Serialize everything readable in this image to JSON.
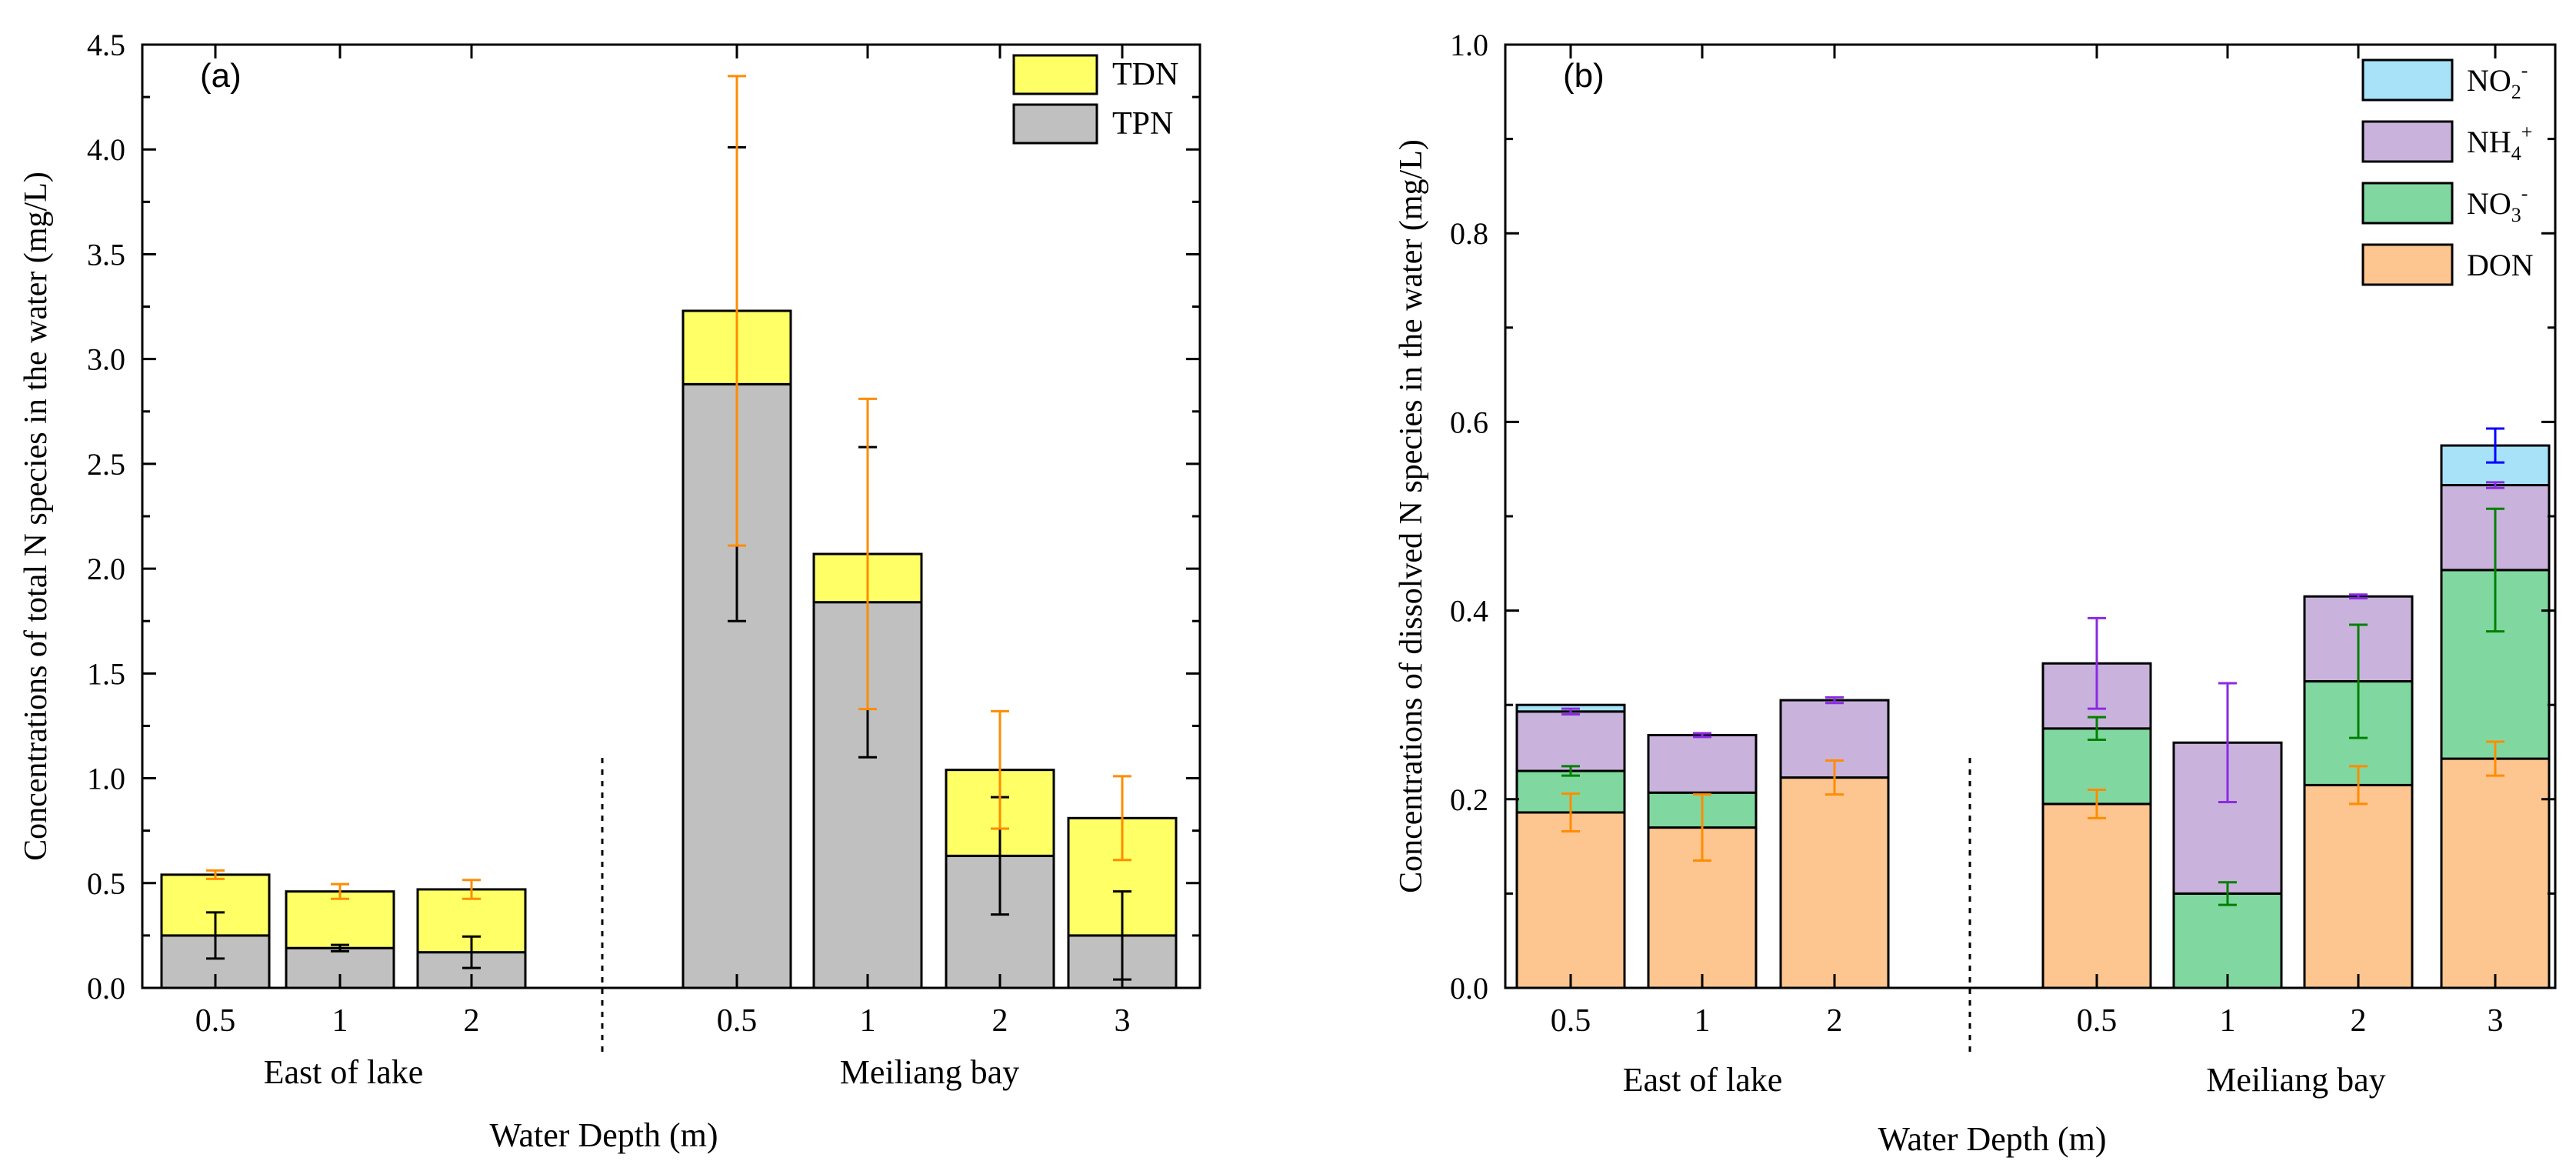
{
  "chart_data": [
    {
      "type": "bar",
      "stacked": true,
      "panel_label": "(a)",
      "xlabel": "Water Depth (m)",
      "ylabel": "Concentrations of total N species in the water (mg/L)",
      "ylim": [
        0,
        4.5
      ],
      "yticks": [
        "0.0",
        "0.5",
        "1.0",
        "1.5",
        "2.0",
        "2.5",
        "3.0",
        "3.5",
        "4.0",
        "4.5"
      ],
      "groups": [
        {
          "name": "East of lake",
          "categories": [
            "0.5",
            "1",
            "2"
          ]
        },
        {
          "name": "Meiliang bay",
          "categories": [
            "0.5",
            "1",
            "2",
            "3"
          ]
        }
      ],
      "legend": [
        "TDN",
        "TPN"
      ],
      "series": [
        {
          "name": "TPN",
          "color": "#c0c0c0",
          "values": [
            0.25,
            0.19,
            0.17,
            2.88,
            1.84,
            0.63,
            0.25
          ],
          "errors": [
            0.11,
            0.015,
            0.075,
            1.13,
            0.74,
            0.28,
            0.21
          ],
          "error_color": "#000000"
        },
        {
          "name": "TDN",
          "color": "#ffff66",
          "values": [
            0.29,
            0.27,
            0.3,
            0.35,
            0.23,
            0.41,
            0.56
          ],
          "errors": [
            0.02,
            0.035,
            0.045,
            1.12,
            0.74,
            0.28,
            0.2
          ],
          "error_color": "#ff8c00"
        }
      ]
    },
    {
      "type": "bar",
      "stacked": true,
      "panel_label": "(b)",
      "xlabel": "Water Depth (m)",
      "ylabel": "Concentrations of dissolved N species in the water (mg/L)",
      "ylim": [
        0,
        1.0
      ],
      "yticks": [
        "0.0",
        "0.2",
        "0.4",
        "0.6",
        "0.8",
        "1.0"
      ],
      "groups": [
        {
          "name": "East of lake",
          "categories": [
            "0.5",
            "1",
            "2"
          ]
        },
        {
          "name": "Meiliang bay",
          "categories": [
            "0.5",
            "1",
            "2",
            "3"
          ]
        }
      ],
      "legend": [
        {
          "base": "NO",
          "sub": "2",
          "sup": "-"
        },
        {
          "base": "NH",
          "sub": "4",
          "sup": "+"
        },
        {
          "base": "NO",
          "sub": "3",
          "sup": "-"
        },
        {
          "base": "DON",
          "sub": "",
          "sup": ""
        }
      ],
      "series": [
        {
          "name": "DON",
          "color": "#fdc590",
          "values": [
            0.186,
            0.17,
            0.223,
            0.195,
            0.0,
            0.215,
            0.243
          ],
          "errors": [
            0.02,
            0.035,
            0.018,
            0.015,
            0.0,
            0.02,
            0.018
          ],
          "error_color": "#ff8c00"
        },
        {
          "name": "NO3-",
          "color": "#80d8a0",
          "values": [
            0.044,
            0.037,
            0.0,
            0.08,
            0.1,
            0.11,
            0.2
          ],
          "errors": [
            0.005,
            0.0,
            0.0,
            0.012,
            0.012,
            0.06,
            0.065
          ],
          "error_color": "#008000"
        },
        {
          "name": "NH4+",
          "color": "#c9b3dc",
          "values": [
            0.063,
            0.061,
            0.082,
            0.069,
            0.16,
            0.09,
            0.09
          ],
          "errors": [
            0.003,
            0.002,
            0.003,
            0.048,
            0.063,
            0.002,
            0.003
          ],
          "error_color": "#8a2be2"
        },
        {
          "name": "NO2-",
          "color": "#a8e2f8",
          "values": [
            0.007,
            0.0,
            0.0,
            0.0,
            0.0,
            0.0,
            0.042
          ],
          "errors": [
            0.0,
            0.0,
            0.0,
            0.0,
            0.0,
            0.0,
            0.018
          ],
          "error_color": "#0000ff"
        }
      ]
    }
  ]
}
